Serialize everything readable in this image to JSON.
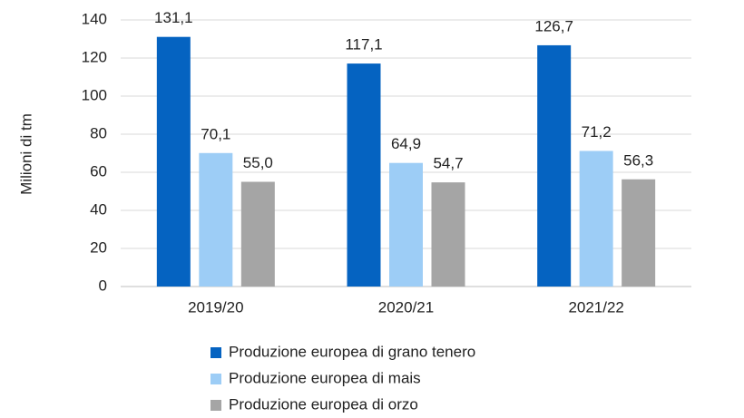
{
  "chart_data": {
    "type": "bar",
    "ylabel": "Milioni di tm",
    "categories": [
      "2019/20",
      "2020/21",
      "2021/22"
    ],
    "series": [
      {
        "name": "Produzione europea di grano tenero",
        "color": "#0563c1",
        "values": [
          131.1,
          117.1,
          126.7
        ],
        "value_labels": [
          "131,1",
          "117,1",
          "126,7"
        ]
      },
      {
        "name": "Produzione europea di mais",
        "color": "#9dcdf6",
        "values": [
          70.1,
          64.9,
          71.2
        ],
        "value_labels": [
          "70,1",
          "64,9",
          "71,2"
        ]
      },
      {
        "name": "Produzione europea di orzo",
        "color": "#a5a5a5",
        "values": [
          55.0,
          54.7,
          56.3
        ],
        "value_labels": [
          "55,0",
          "54,7",
          "56,3"
        ]
      }
    ],
    "ylim": [
      0,
      140
    ],
    "yticks": [
      0,
      20,
      40,
      60,
      80,
      100,
      120,
      140
    ],
    "grid": true,
    "legend": "bottom"
  }
}
